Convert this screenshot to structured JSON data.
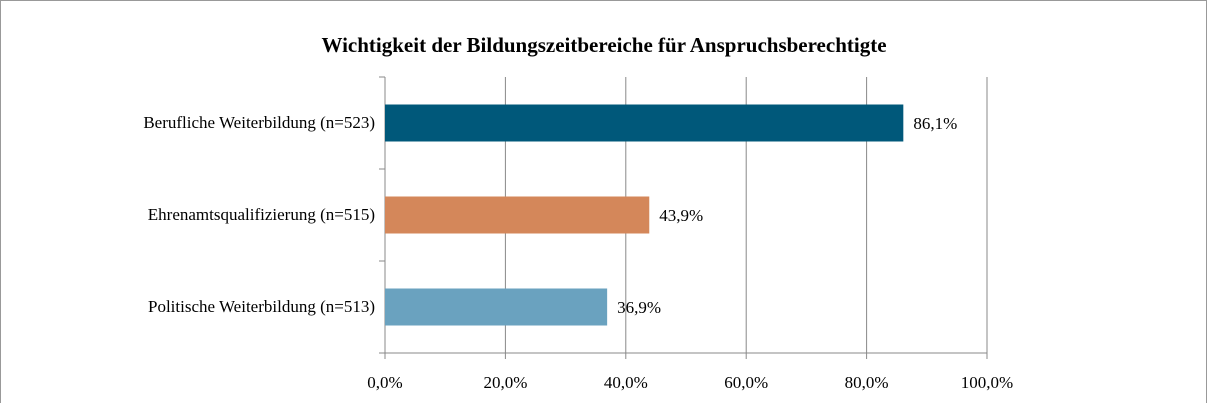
{
  "chart_data": {
    "type": "bar",
    "orientation": "horizontal",
    "title": "Wichtigkeit der Bildungszeitbereiche für Anspruchsberechtigte",
    "categories": [
      "Berufliche Weiterbildung (n=523)",
      "Ehrenamtsqualifizierung (n=515)",
      "Politische Weiterbildung (n=513)"
    ],
    "values": [
      86.1,
      43.9,
      36.9
    ],
    "value_labels": [
      "86,1%",
      "43,9%",
      "36,9%"
    ],
    "colors": [
      "#00587a",
      "#d4875a",
      "#6aa2bf"
    ],
    "xlim": [
      0,
      100
    ],
    "xticks": [
      {
        "value": 0,
        "label": "0,0%"
      },
      {
        "value": 20,
        "label": "20,0%"
      },
      {
        "value": 40,
        "label": "40,0%"
      },
      {
        "value": 60,
        "label": "60,0%"
      },
      {
        "value": 80,
        "label": "80,0%"
      },
      {
        "value": 100,
        "label": "100,0%"
      }
    ],
    "grid": true
  }
}
